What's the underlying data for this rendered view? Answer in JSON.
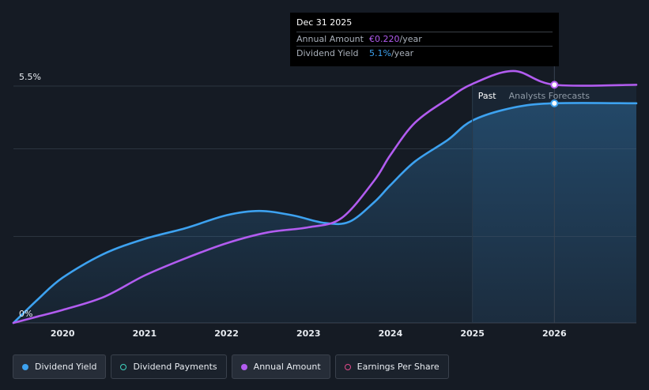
{
  "chart_data": {
    "type": "line",
    "x_tick_labels": [
      "2020",
      "2021",
      "2022",
      "2023",
      "2024",
      "2025",
      "2026"
    ],
    "y_tick_labels": [
      "5.5%",
      "0%"
    ],
    "xlim": [
      2019.4,
      2027.0
    ],
    "ylim": [
      0,
      5.5
    ],
    "past_label": "Past",
    "forecast_label": "Analysts Forecasts",
    "forecast_start": 2025.0,
    "past_end_marker": 2025.4,
    "grid": true,
    "series": [
      {
        "name": "Dividend Yield",
        "color": "#3da2f0",
        "filled": true,
        "points": [
          [
            2019.4,
            0
          ],
          [
            2019.7,
            0.55
          ],
          [
            2020.0,
            1.05
          ],
          [
            2020.5,
            1.6
          ],
          [
            2021.0,
            1.95
          ],
          [
            2021.5,
            2.2
          ],
          [
            2022.0,
            2.5
          ],
          [
            2022.4,
            2.6
          ],
          [
            2022.8,
            2.5
          ],
          [
            2023.2,
            2.32
          ],
          [
            2023.5,
            2.35
          ],
          [
            2023.8,
            2.8
          ],
          [
            2024.0,
            3.2
          ],
          [
            2024.3,
            3.75
          ],
          [
            2024.7,
            4.25
          ],
          [
            2025.0,
            4.7
          ],
          [
            2025.5,
            5.0
          ],
          [
            2026.0,
            5.1
          ],
          [
            2027.0,
            5.1
          ]
        ]
      },
      {
        "name": "Annual Amount",
        "color": "#b25cf0",
        "filled": false,
        "points": [
          [
            2019.4,
            0
          ],
          [
            2019.7,
            0.15
          ],
          [
            2020.0,
            0.3
          ],
          [
            2020.5,
            0.6
          ],
          [
            2021.0,
            1.1
          ],
          [
            2021.5,
            1.5
          ],
          [
            2022.0,
            1.85
          ],
          [
            2022.5,
            2.1
          ],
          [
            2023.0,
            2.22
          ],
          [
            2023.4,
            2.43
          ],
          [
            2023.8,
            3.3
          ],
          [
            2024.0,
            3.9
          ],
          [
            2024.3,
            4.65
          ],
          [
            2024.7,
            5.2
          ],
          [
            2025.0,
            5.55
          ],
          [
            2025.5,
            5.85
          ],
          [
            2026.0,
            5.53
          ],
          [
            2027.0,
            5.53
          ]
        ]
      }
    ],
    "tooltip": {
      "date": "Dec 31 2025",
      "rows": [
        {
          "key": "Annual Amount",
          "value": "€0.220",
          "unit": "/year"
        },
        {
          "key": "Dividend Yield",
          "value": "5.1%",
          "unit": "/year"
        }
      ]
    }
  },
  "legend": [
    {
      "label": "Dividend Yield",
      "color": "#3da2f0",
      "filled": true,
      "active": true
    },
    {
      "label": "Dividend Payments",
      "color": "#3fd3c0",
      "filled": false,
      "active": false
    },
    {
      "label": "Annual Amount",
      "color": "#b25cf0",
      "filled": true,
      "active": true
    },
    {
      "label": "Earnings Per Share",
      "color": "#e04a8a",
      "filled": false,
      "active": false
    }
  ]
}
